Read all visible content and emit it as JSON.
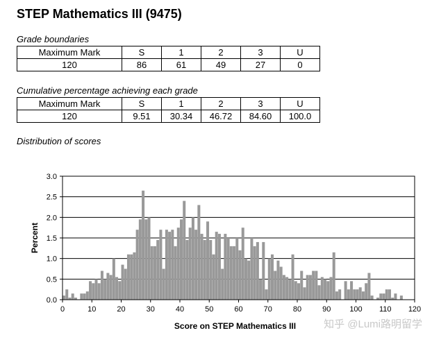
{
  "title": "STEP Mathematics III (9475)",
  "grade_boundaries": {
    "label": "Grade boundaries",
    "headers": [
      "Maximum Mark",
      "S",
      "1",
      "2",
      "3",
      "U"
    ],
    "values": [
      "120",
      "86",
      "61",
      "49",
      "27",
      "0"
    ]
  },
  "cumulative": {
    "label": "Cumulative percentage achieving each grade",
    "headers": [
      "Maximum Mark",
      "S",
      "1",
      "2",
      "3",
      "U"
    ],
    "values": [
      "120",
      "9.51",
      "30.34",
      "46.72",
      "84.60",
      "100.0"
    ]
  },
  "distribution_label": "Distribution of scores",
  "watermark": "知乎 @Lumi路明留学",
  "chart_data": {
    "type": "bar",
    "title": "",
    "xlabel": "Score on STEP Mathematics III",
    "ylabel": "Percent",
    "xlim": [
      0,
      120
    ],
    "ylim": [
      0,
      3.0
    ],
    "x_ticks": [
      0,
      10,
      20,
      30,
      40,
      50,
      60,
      70,
      80,
      90,
      100,
      110,
      120
    ],
    "y_ticks": [
      0,
      0.5,
      1.0,
      1.5,
      2.0,
      2.5,
      3.0
    ],
    "y_tick_labels": [
      "0.0",
      "0.5",
      "1.0",
      "1.5",
      "2.0",
      "2.5",
      "3.0"
    ],
    "grid": "horizontal",
    "bar_color": "#999999",
    "plot_background": "#ffffff",
    "x": [
      0,
      1,
      2,
      3,
      4,
      5,
      6,
      7,
      8,
      9,
      10,
      11,
      12,
      13,
      14,
      15,
      16,
      17,
      18,
      19,
      20,
      21,
      22,
      23,
      24,
      25,
      26,
      27,
      28,
      29,
      30,
      31,
      32,
      33,
      34,
      35,
      36,
      37,
      38,
      39,
      40,
      41,
      42,
      43,
      44,
      45,
      46,
      47,
      48,
      49,
      50,
      51,
      52,
      53,
      54,
      55,
      56,
      57,
      58,
      59,
      60,
      61,
      62,
      63,
      64,
      65,
      66,
      67,
      68,
      69,
      70,
      71,
      72,
      73,
      74,
      75,
      76,
      77,
      78,
      79,
      80,
      81,
      82,
      83,
      84,
      85,
      86,
      87,
      88,
      89,
      90,
      91,
      92,
      93,
      94,
      95,
      96,
      97,
      98,
      99,
      100,
      101,
      102,
      103,
      104,
      105,
      106,
      107,
      108,
      109,
      110,
      111,
      112,
      113,
      114,
      115,
      116,
      117,
      118,
      119,
      120
    ],
    "values": [
      0.1,
      0.25,
      0.05,
      0.15,
      0.05,
      0,
      0.15,
      0.15,
      0.2,
      0.45,
      0.4,
      0.5,
      0.4,
      0.7,
      0.5,
      0.65,
      0.6,
      1.0,
      0.55,
      0.45,
      0.85,
      0.75,
      1.1,
      1.1,
      1.15,
      1.7,
      1.95,
      2.65,
      1.95,
      2.0,
      1.3,
      1.3,
      1.45,
      1.7,
      0.75,
      1.7,
      1.65,
      1.7,
      1.3,
      1.75,
      1.95,
      2.4,
      1.45,
      1.75,
      2.0,
      1.7,
      2.3,
      1.6,
      1.45,
      1.9,
      1.45,
      1.1,
      1.65,
      1.6,
      0.75,
      1.6,
      1.5,
      1.3,
      1.3,
      1.5,
      1.2,
      1.75,
      1.0,
      0.95,
      1.5,
      1.3,
      1.4,
      0.5,
      1.4,
      0.25,
      1.0,
      1.1,
      0.7,
      0.95,
      0.8,
      0.6,
      0.55,
      0.5,
      1.1,
      0.45,
      0.4,
      0.7,
      0.3,
      0.6,
      0.6,
      0.7,
      0.7,
      0.35,
      0.55,
      0.5,
      0.45,
      0.55,
      1.15,
      0.2,
      0.25,
      0,
      0.45,
      0.25,
      0.45,
      0.25,
      0.25,
      0.3,
      0.2,
      0.4,
      0.65,
      0.1,
      0,
      0.05,
      0.15,
      0.15,
      0.25,
      0.25,
      0.05,
      0.15,
      0,
      0.1,
      0,
      0,
      0,
      0,
      0
    ]
  }
}
